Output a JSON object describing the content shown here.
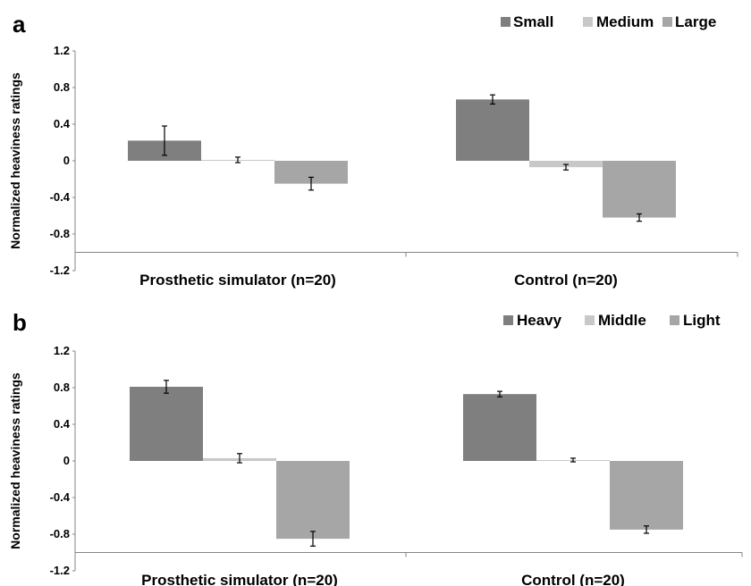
{
  "chart_data": [
    {
      "type": "bar",
      "panel_label": "a",
      "ylabel": "Normalized heaviness ratings",
      "ylim": [
        -1.2,
        1.2
      ],
      "yticks": [
        "1.2",
        "0.8",
        "0.4",
        "0",
        "-0.4",
        "-0.8",
        "-1.2"
      ],
      "categories": [
        "Prosthetic simulator (n=20)",
        "Control (n=20)"
      ],
      "legend_position": "top-right",
      "grid": false,
      "series": [
        {
          "name": "Small",
          "color": "#7f7f7f",
          "values": [
            0.22,
            0.67
          ],
          "errors": [
            0.16,
            0.05
          ]
        },
        {
          "name": "Medium",
          "color": "#c8c8c8",
          "values": [
            0.01,
            -0.07
          ],
          "errors": [
            0.03,
            0.03
          ]
        },
        {
          "name": "Large",
          "color": "#a6a6a6",
          "values": [
            -0.25,
            -0.62
          ],
          "errors": [
            0.07,
            0.04
          ]
        }
      ]
    },
    {
      "type": "bar",
      "panel_label": "b",
      "ylabel": "Normalized heaviness ratings",
      "ylim": [
        -1.2,
        1.2
      ],
      "yticks": [
        "1.2",
        "0.8",
        "0.4",
        "0",
        "-0.4",
        "-0.8",
        "-1.2"
      ],
      "categories": [
        "Prosthetic simulator (n=20)",
        "Control (n=20)"
      ],
      "legend_position": "top-right",
      "grid": false,
      "series": [
        {
          "name": "Heavy",
          "color": "#7f7f7f",
          "values": [
            0.81,
            0.73
          ],
          "errors": [
            0.07,
            0.03
          ]
        },
        {
          "name": "Middle",
          "color": "#c8c8c8",
          "values": [
            0.03,
            0.01
          ],
          "errors": [
            0.05,
            0.02
          ]
        },
        {
          "name": "Light",
          "color": "#a6a6a6",
          "values": [
            -0.85,
            -0.75
          ],
          "errors": [
            0.08,
            0.04
          ]
        }
      ]
    }
  ]
}
